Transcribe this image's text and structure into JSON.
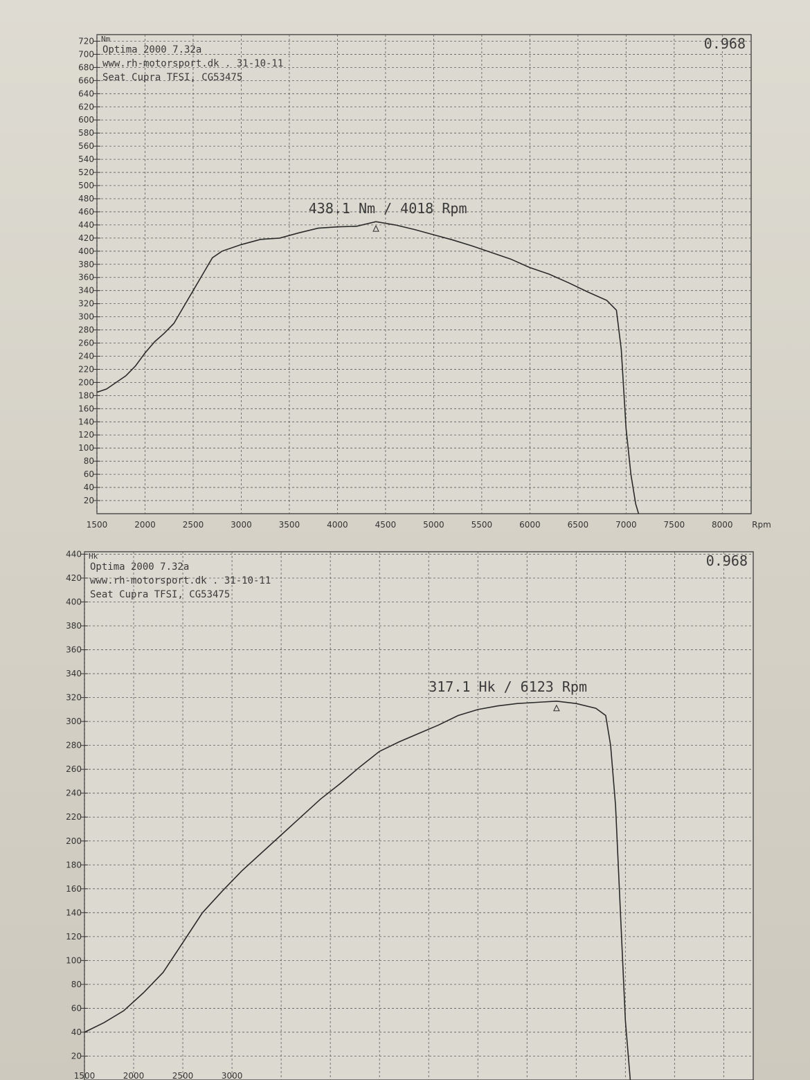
{
  "chart_data": [
    {
      "type": "line",
      "unit_label": "Nm",
      "corner_value": "0.968",
      "header_lines": [
        "Optima 2000 7.32a",
        "www.rh-motorsport.dk   .  31-10-11",
        "Seat Cupra TFSI, CG53475"
      ],
      "peak_annotation": "438.1  Nm  /  4018  Rpm",
      "x_unit": "Rpm",
      "x_ticks": [
        1500,
        2000,
        2500,
        3000,
        3500,
        4000,
        4500,
        5000,
        5500,
        6000,
        6500,
        7000,
        7500,
        8000
      ],
      "y_ticks": [
        20,
        40,
        60,
        80,
        100,
        120,
        140,
        160,
        180,
        200,
        220,
        240,
        260,
        280,
        300,
        320,
        340,
        360,
        380,
        400,
        420,
        440,
        460,
        480,
        500,
        520,
        540,
        560,
        580,
        600,
        620,
        640,
        660,
        680,
        700,
        720
      ],
      "xlim": [
        1500,
        8300
      ],
      "ylim": [
        0,
        730
      ],
      "grid": true,
      "series": [
        {
          "x": [
            1500,
            1600,
            1700,
            1800,
            1900,
            2000,
            2100,
            2200,
            2300,
            2400,
            2500,
            2600,
            2700,
            2800,
            3000,
            3200,
            3400,
            3600,
            3800,
            4000,
            4200,
            4400,
            4600,
            4800,
            5000,
            5200,
            5400,
            5600,
            5800,
            6000,
            6200,
            6400,
            6600,
            6800,
            6900,
            6950,
            7000,
            7050,
            7100,
            7130
          ],
          "y": [
            185,
            190,
            200,
            210,
            225,
            245,
            262,
            275,
            290,
            315,
            340,
            365,
            390,
            400,
            410,
            418,
            420,
            428,
            435,
            437,
            438,
            445,
            440,
            433,
            425,
            417,
            408,
            398,
            388,
            375,
            365,
            352,
            338,
            325,
            310,
            250,
            130,
            60,
            15,
            0
          ]
        }
      ]
    },
    {
      "type": "line",
      "unit_label": "Hk",
      "corner_value": "0.968",
      "header_lines": [
        "Optima 2000 7.32a",
        "www.rh-motorsport.dk   .  31-10-11",
        "Seat Cupra TFSI, CG53475"
      ],
      "peak_annotation": "317.1  Hk  /  6123  Rpm",
      "x_ticks": [
        1500,
        2000,
        2500,
        3000
      ],
      "y_ticks": [
        20,
        40,
        60,
        80,
        100,
        120,
        140,
        160,
        180,
        200,
        220,
        240,
        260,
        280,
        300,
        320,
        340,
        360,
        380,
        400,
        420,
        440
      ],
      "xlim": [
        1500,
        8300
      ],
      "ylim": [
        0,
        442
      ],
      "grid": true,
      "series": [
        {
          "x": [
            1500,
            1700,
            1900,
            2100,
            2300,
            2500,
            2700,
            2900,
            3100,
            3300,
            3500,
            3700,
            3900,
            4100,
            4300,
            4500,
            4700,
            4900,
            5100,
            5300,
            5500,
            5700,
            5900,
            6100,
            6300,
            6500,
            6700,
            6800,
            6850,
            6900,
            6950,
            7000,
            7050
          ],
          "y": [
            40,
            48,
            58,
            73,
            90,
            115,
            140,
            158,
            175,
            190,
            205,
            220,
            235,
            248,
            262,
            275,
            283,
            290,
            297,
            305,
            310,
            313,
            315,
            316,
            317,
            315,
            311,
            305,
            280,
            230,
            140,
            50,
            0
          ]
        }
      ]
    }
  ]
}
